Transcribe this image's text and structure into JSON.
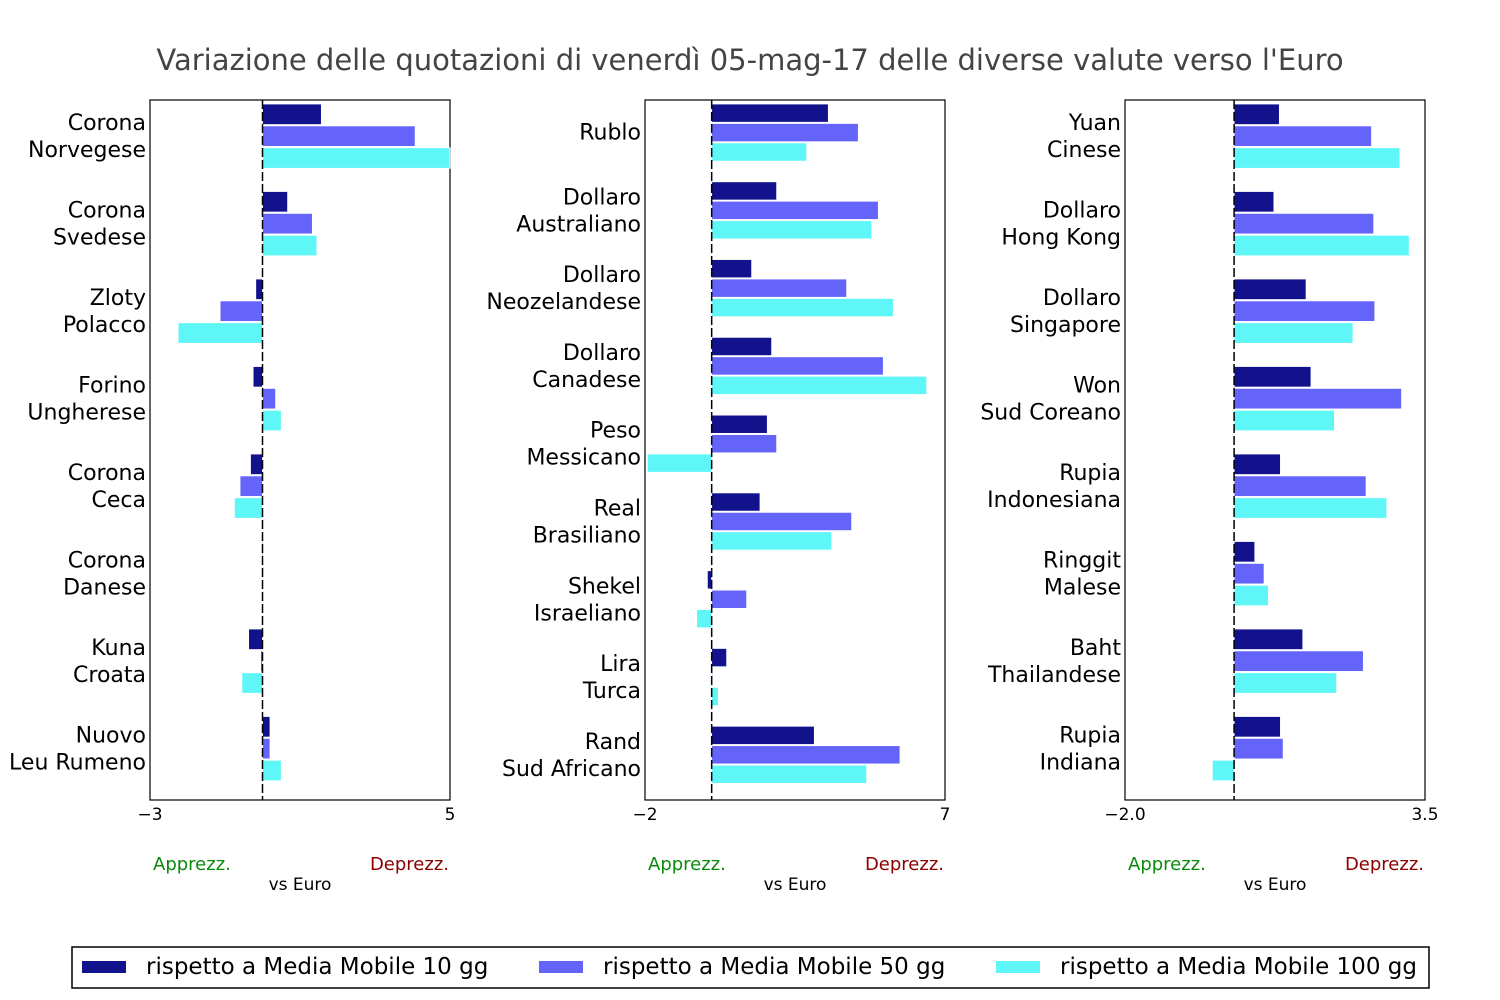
{
  "title": "Variazione delle quotazioni di venerdì 05-mag-17 delle diverse valute verso l'Euro",
  "colors": {
    "s10": "#12128c",
    "s50": "#6464fa",
    "s100": "#5ef6f6"
  },
  "legend": {
    "s10": "rispetto a Media Mobile 10 gg",
    "s50": "rispetto a Media Mobile 50 gg",
    "s100": "rispetto a Media Mobile 100 gg"
  },
  "chart_data": [
    {
      "type": "bar",
      "orientation": "horizontal",
      "xlabel": "vs Euro",
      "left_label": "Apprezz.",
      "right_label": "Deprezz.",
      "xlim": [
        -3,
        5
      ],
      "tick_labels": [
        "−3",
        "5"
      ],
      "categories": [
        [
          "Corona",
          "Norvegese"
        ],
        [
          "Corona",
          "Svedese"
        ],
        [
          "Zloty",
          "Polacco"
        ],
        [
          "Forino",
          "Ungherese"
        ],
        [
          "Corona",
          "Ceca"
        ],
        [
          "Corona",
          "Danese"
        ],
        [
          "Kuna",
          "Croata"
        ],
        [
          "Nuovo",
          "Leu Rumeno"
        ]
      ],
      "series": [
        {
          "name": "rispetto a Media Mobile 10 gg",
          "values": [
            1.57,
            0.67,
            -0.18,
            -0.25,
            -0.32,
            -0.02,
            -0.37,
            0.2
          ]
        },
        {
          "name": "rispetto a Media Mobile 50 gg",
          "values": [
            4.07,
            1.33,
            -1.13,
            0.35,
            -0.6,
            0.02,
            -0.05,
            0.2
          ]
        },
        {
          "name": "rispetto a Media Mobile 100 gg",
          "values": [
            5.0,
            1.45,
            -2.25,
            0.5,
            -0.75,
            0.02,
            -0.55,
            0.5
          ]
        }
      ]
    },
    {
      "type": "bar",
      "orientation": "horizontal",
      "xlabel": "vs Euro",
      "left_label": "Apprezz.",
      "right_label": "Deprezz.",
      "xlim": [
        -2,
        7
      ],
      "tick_labels": [
        "−2",
        "7"
      ],
      "categories": [
        [
          "Rublo"
        ],
        [
          "Dollaro",
          "Australiano"
        ],
        [
          "Dollaro",
          "Neozelandese"
        ],
        [
          "Dollaro",
          "Canadese"
        ],
        [
          "Peso",
          "Messicano"
        ],
        [
          "Real",
          "Brasiliano"
        ],
        [
          "Shekel",
          "Israeliano"
        ],
        [
          "Lira",
          "Turca"
        ],
        [
          "Rand",
          "Sud Africano"
        ]
      ],
      "series": [
        {
          "name": "rispetto a Media Mobile 10 gg",
          "values": [
            3.5,
            1.95,
            1.2,
            1.8,
            1.67,
            1.45,
            -0.13,
            0.45,
            3.08
          ]
        },
        {
          "name": "rispetto a Media Mobile 50 gg",
          "values": [
            4.4,
            5.0,
            4.05,
            5.15,
            1.95,
            4.2,
            1.05,
            0.0,
            5.65
          ]
        },
        {
          "name": "rispetto a Media Mobile 100 gg",
          "values": [
            2.85,
            4.8,
            5.45,
            6.45,
            -1.93,
            3.6,
            -0.45,
            0.2,
            4.65
          ]
        }
      ]
    },
    {
      "type": "bar",
      "orientation": "horizontal",
      "xlabel": "vs Euro",
      "left_label": "Apprezz.",
      "right_label": "Deprezz.",
      "xlim": [
        -2.0,
        3.5
      ],
      "tick_labels": [
        "−2.0",
        "3.5"
      ],
      "categories": [
        [
          "Yuan",
          "Cinese"
        ],
        [
          "Dollaro",
          "Hong Kong"
        ],
        [
          "Dollaro",
          "Singapore"
        ],
        [
          "Won",
          "Sud Coreano"
        ],
        [
          "Rupia",
          "Indonesiana"
        ],
        [
          "Ringgit",
          "Malese"
        ],
        [
          "Baht",
          "Thailandese"
        ],
        [
          "Rupia",
          "Indiana"
        ]
      ],
      "series": [
        {
          "name": "rispetto a Media Mobile 10 gg",
          "values": [
            0.83,
            0.73,
            1.32,
            1.41,
            0.85,
            0.38,
            1.26,
            0.85
          ]
        },
        {
          "name": "rispetto a Media Mobile 50 gg",
          "values": [
            2.52,
            2.56,
            2.58,
            3.07,
            2.42,
            0.55,
            2.37,
            0.9
          ]
        },
        {
          "name": "rispetto a Media Mobile 100 gg",
          "values": [
            3.04,
            3.21,
            2.18,
            1.84,
            2.8,
            0.63,
            1.88,
            -0.4
          ]
        }
      ]
    }
  ]
}
